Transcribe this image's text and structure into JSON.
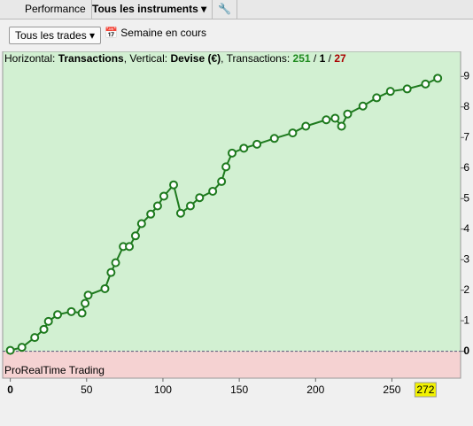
{
  "toolbar": {
    "tab_performance": "Performance",
    "tab_instruments": "Tous les instruments",
    "trades_filter": "Tous les trades",
    "period": "Semaine en cours"
  },
  "chart_data": {
    "type": "line",
    "info": {
      "h_label": "Horizontal:",
      "h_value": "Transactions",
      "v_label": ", Vertical:",
      "v_value": "Devise (€)",
      "t_label": ", Transactions:",
      "wins": 251,
      "sep1": "/",
      "even": 1,
      "sep2": "/",
      "losses": 27
    },
    "watermark": "ProRealTime Trading",
    "x": [
      0,
      7.6,
      16,
      22,
      25,
      31,
      40,
      47,
      49,
      51,
      62,
      66,
      69,
      74,
      78,
      82,
      86,
      92,
      96.5,
      100.6,
      107,
      111.6,
      118,
      124,
      132.6,
      138.4,
      141.3,
      145.3,
      153,
      161.6,
      173,
      185,
      193.6,
      207,
      212.8,
      217,
      221,
      231,
      240,
      249,
      260,
      272,
      280
    ],
    "series": [
      {
        "color": "#1e7a1e",
        "values": [
          0.03,
          0.13,
          0.45,
          0.72,
          0.98,
          1.2,
          1.3,
          1.25,
          1.57,
          1.84,
          2.05,
          2.58,
          2.9,
          3.43,
          3.43,
          3.78,
          4.18,
          4.49,
          4.76,
          5.08,
          5.45,
          4.52,
          4.76,
          5.03,
          5.24,
          5.56,
          6.04,
          6.49,
          6.65,
          6.78,
          6.97,
          7.15,
          7.37,
          7.58,
          7.63,
          7.37,
          7.77,
          8.03,
          8.3,
          8.51,
          8.59,
          8.75,
          8.94
        ]
      }
    ],
    "xlim": [
      -5,
      295
    ],
    "ylim": [
      -0.88,
      9.82
    ],
    "xticks": [
      0,
      50,
      100,
      150,
      200,
      250
    ],
    "xcursor": 272,
    "yticks": [
      0,
      1,
      2,
      3,
      4,
      5,
      6,
      7,
      8,
      9
    ]
  }
}
